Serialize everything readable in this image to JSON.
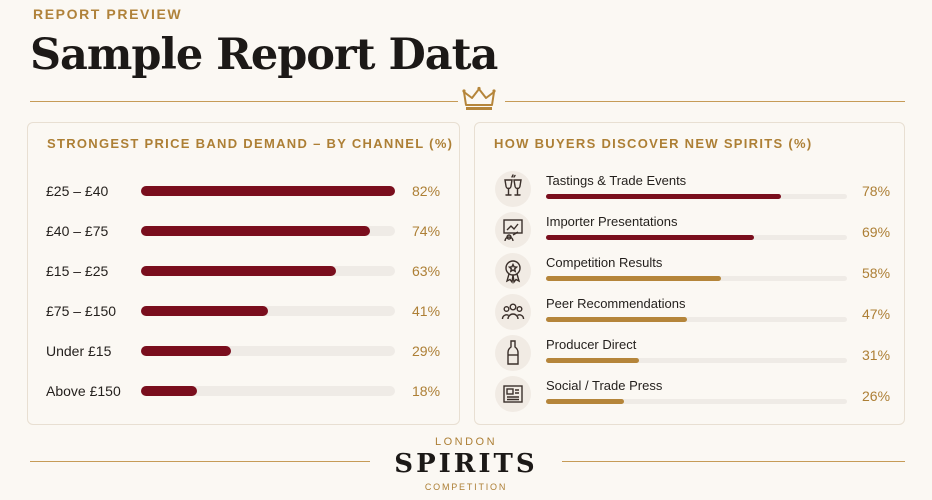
{
  "header": {
    "eyebrow": "REPORT PREVIEW",
    "title": "Sample Report Data"
  },
  "colors": {
    "maroon": "#7a0e1d",
    "gold": "#b5853a",
    "track": "#efebe6"
  },
  "chart_data": [
    {
      "type": "bar",
      "orientation": "horizontal",
      "title": "STRONGEST PRICE BAND DEMAND – BY CHANNEL (%)",
      "categories": [
        "£25 – £40",
        "£40 – £75",
        "£15 – £25",
        "£75 – £150",
        "Under £15",
        "Above £150"
      ],
      "values": [
        82,
        74,
        63,
        41,
        29,
        18
      ],
      "value_labels": [
        "82%",
        "74%",
        "63%",
        "41%",
        "29%",
        "18%"
      ],
      "xlim": [
        0,
        82
      ],
      "bar_color": "#7a0e1d",
      "grid": false
    },
    {
      "type": "bar",
      "orientation": "horizontal",
      "title": "HOW BUYERS DISCOVER NEW SPIRITS (%)",
      "categories": [
        "Tastings & Trade Events",
        "Importer Presentations",
        "Competition Results",
        "Peer Recommendations",
        "Producer Direct",
        "Social / Trade Press"
      ],
      "values": [
        78,
        69,
        58,
        47,
        31,
        26
      ],
      "value_labels": [
        "78%",
        "69%",
        "58%",
        "47%",
        "31%",
        "26%"
      ],
      "xlim": [
        0,
        100
      ],
      "bar_colors": [
        "#7a0e1d",
        "#7a0e1d",
        "#b5853a",
        "#b5853a",
        "#b5853a",
        "#b5853a"
      ],
      "icons": [
        "wine-glasses-icon",
        "presentation-icon",
        "award-medal-icon",
        "people-group-icon",
        "bottle-icon",
        "newspaper-icon"
      ],
      "grid": false
    }
  ],
  "footer": {
    "top": "LONDON",
    "main": "SPIRITS",
    "bottom": "COMPETITION"
  }
}
